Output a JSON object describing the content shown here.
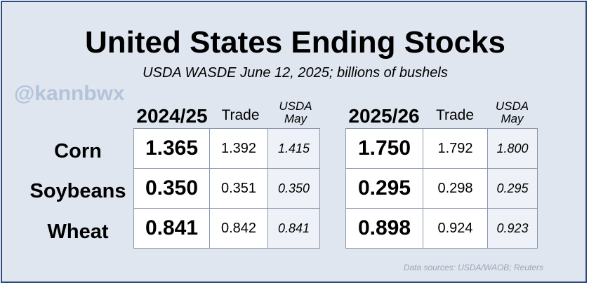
{
  "title": "United States Ending Stocks",
  "subtitle": "USDA WASDE June 12, 2025; billions of bushels",
  "watermark": "@kannbwx",
  "left_table": {
    "year": "2024/25",
    "trade_label": "Trade",
    "usda_label_line1": "USDA",
    "usda_label_line2": "May"
  },
  "right_table": {
    "year": "2025/26",
    "trade_label": "Trade",
    "usda_label_line1": "USDA",
    "usda_label_line2": "May"
  },
  "rows": [
    {
      "label": "Corn",
      "left": {
        "value": "1.365",
        "trade": "1.392",
        "usda_may": "1.415"
      },
      "right": {
        "value": "1.750",
        "trade": "1.792",
        "usda_may": "1.800"
      }
    },
    {
      "label": "Soybeans",
      "left": {
        "value": "0.350",
        "trade": "0.351",
        "usda_may": "0.350"
      },
      "right": {
        "value": "0.295",
        "trade": "0.298",
        "usda_may": "0.295"
      }
    },
    {
      "label": "Wheat",
      "left": {
        "value": "0.841",
        "trade": "0.842",
        "usda_may": "0.841"
      },
      "right": {
        "value": "0.898",
        "trade": "0.924",
        "usda_may": "0.923"
      }
    }
  ],
  "source": "Data sources: USDA/WAOB; Reuters",
  "colors": {
    "border": "#2e4a7a",
    "background": "#dfe6f0",
    "watermark": "#b3c3d9",
    "usda_cell": "#eef2f8"
  }
}
